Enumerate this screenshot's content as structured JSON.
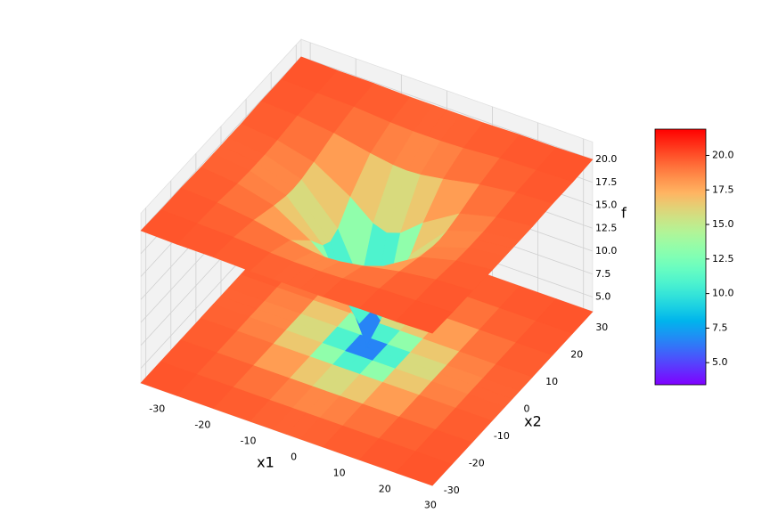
{
  "chart_data": {
    "type": "surface",
    "colormap": "rainbow",
    "xlabel": "x1",
    "ylabel": "x2",
    "zlabel": "f",
    "x": [
      -32,
      -24,
      -16,
      -8,
      -3,
      0,
      3,
      8,
      16,
      24,
      32
    ],
    "y": [
      -32,
      -24,
      -16,
      -8,
      -3,
      0,
      3,
      8,
      16,
      24,
      32
    ],
    "z": [
      [
        20.0,
        19.9,
        19.9,
        19.8,
        19.8,
        19.8,
        19.8,
        19.8,
        19.9,
        19.9,
        20.0
      ],
      [
        19.9,
        19.8,
        19.7,
        19.4,
        19.3,
        19.3,
        19.3,
        19.4,
        19.7,
        19.8,
        19.9
      ],
      [
        19.9,
        19.7,
        19.2,
        18.4,
        18.0,
        17.9,
        18.0,
        18.4,
        19.2,
        19.7,
        19.9
      ],
      [
        19.8,
        19.4,
        18.4,
        16.0,
        14.0,
        13.5,
        14.0,
        16.0,
        18.4,
        19.4,
        19.8
      ],
      [
        19.8,
        19.3,
        18.0,
        14.0,
        9.0,
        6.9,
        9.0,
        14.0,
        18.0,
        19.3,
        19.8
      ],
      [
        19.8,
        19.3,
        17.9,
        13.5,
        6.9,
        3.6,
        6.9,
        13.5,
        17.9,
        19.3,
        19.8
      ],
      [
        19.8,
        19.3,
        18.0,
        14.0,
        9.0,
        6.9,
        9.0,
        14.0,
        18.0,
        19.3,
        19.8
      ],
      [
        19.8,
        19.4,
        18.4,
        16.0,
        14.0,
        13.5,
        14.0,
        16.0,
        18.4,
        19.4,
        19.8
      ],
      [
        19.9,
        19.7,
        19.2,
        18.4,
        18.0,
        17.9,
        18.0,
        18.4,
        19.2,
        19.7,
        19.9
      ],
      [
        19.9,
        19.8,
        19.7,
        19.4,
        19.3,
        19.3,
        19.3,
        19.4,
        19.7,
        19.8,
        19.9
      ],
      [
        20.0,
        19.9,
        19.9,
        19.8,
        19.8,
        19.8,
        19.8,
        19.8,
        19.9,
        19.9,
        20.0
      ]
    ],
    "xlim": [
      -32,
      32
    ],
    "ylim": [
      -32,
      32
    ],
    "zlim": [
      3.4,
      21.9
    ],
    "xticks": [
      -30,
      -20,
      -10,
      0,
      10,
      20,
      30
    ],
    "yticks": [
      -30,
      -20,
      -10,
      0,
      10,
      20,
      30
    ],
    "zticks": [
      {
        "value": 5,
        "label": "5.0"
      },
      {
        "value": 7.5,
        "label": "7.5"
      },
      {
        "value": 10,
        "label": "10.0"
      },
      {
        "value": 12.5,
        "label": "12.5"
      },
      {
        "value": 15,
        "label": "15.0"
      },
      {
        "value": 17.5,
        "label": "17.5"
      },
      {
        "value": 20,
        "label": "20.0"
      }
    ],
    "colorbar": {
      "lim": [
        3.4,
        21.9
      ],
      "ticks": [
        {
          "value": 5,
          "label": "5.0"
        },
        {
          "value": 7.5,
          "label": "7.5"
        },
        {
          "value": 10,
          "label": "10.0"
        },
        {
          "value": 12.5,
          "label": "12.5"
        },
        {
          "value": 15,
          "label": "15.0"
        },
        {
          "value": 17.5,
          "label": "17.5"
        },
        {
          "value": 20,
          "label": "20.0"
        }
      ]
    },
    "grid": true
  }
}
